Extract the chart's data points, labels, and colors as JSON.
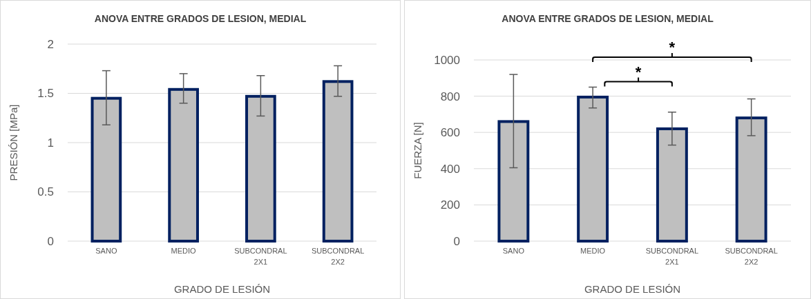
{
  "chart_data": [
    {
      "type": "bar",
      "title": "ANOVA ENTRE GRADOS DE LESION, MEDIAL",
      "xlabel": "GRADO DE LESIÓN",
      "ylabel": "PRESIÓN  [MPa]",
      "categories": [
        "SANO",
        "MEDIO",
        "SUBCONDRAL 2X1",
        "SUBCONDRAL 2X2"
      ],
      "series": [
        {
          "color": "#bfbfbf",
          "values": [
            1.45,
            1.54,
            1.47,
            1.62
          ],
          "errors": [
            [
              1.18,
              1.73
            ],
            [
              1.4,
              1.7
            ],
            [
              1.27,
              1.68
            ],
            [
              1.47,
              1.78
            ]
          ]
        }
      ],
      "ylim": [
        0,
        2
      ],
      "yticks": [
        0,
        {
          "value": 0.5,
          "label": "0.5"
        },
        1,
        {
          "value": 1.5,
          "label": "1.5"
        },
        2
      ],
      "grid": "y"
    },
    {
      "type": "bar",
      "title": "ANOVA ENTRE GRADOS DE LESION, MEDIAL",
      "xlabel": "GRADO DE LESIÓN",
      "ylabel": "FUERZA  [N]",
      "categories": [
        "SANO",
        "MEDIO",
        "SUBCONDRAL 2X1",
        "SUBCONDRAL 2X2"
      ],
      "series": [
        {
          "color": "#bfbfbf",
          "values": [
            660,
            795,
            620,
            680
          ],
          "errors": [
            [
              405,
              920
            ],
            [
              735,
              850
            ],
            [
              530,
              712
            ],
            [
              582,
              785
            ]
          ]
        }
      ],
      "ylim": [
        0,
        1000
      ],
      "yticks": [
        0,
        200,
        400,
        600,
        800,
        1000
      ],
      "grid": "y",
      "annotations": [
        "*",
        "*"
      ]
    }
  ]
}
